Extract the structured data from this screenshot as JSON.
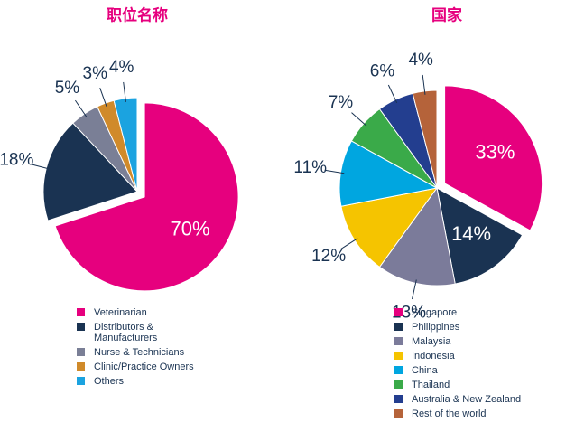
{
  "chart_data": [
    {
      "type": "pie",
      "title": "职位名称",
      "categories": [
        "Veterinarian",
        "Distributors & Manufacturers",
        "Nurse & Technicians",
        "Clinic/Practice Owners",
        "Others"
      ],
      "values": [
        70,
        18,
        5,
        3,
        4
      ],
      "value_labels": [
        "70%",
        "18%",
        "5%",
        "3%",
        "4%"
      ],
      "colors": [
        "#e6007e",
        "#1a3352",
        "#7a7f96",
        "#d08a2a",
        "#1ba3e0"
      ]
    },
    {
      "type": "pie",
      "title": "国家",
      "categories": [
        "Singapore",
        "Philippines",
        "Malaysia",
        "Indonesia",
        "China",
        "Thailand",
        "Australia & New Zealand",
        "Rest of the world"
      ],
      "values": [
        33,
        14,
        13,
        12,
        11,
        7,
        6,
        4
      ],
      "value_labels": [
        "33%",
        "14%",
        "13%",
        "12%",
        "11%",
        "7%",
        "6%",
        "4%"
      ],
      "colors": [
        "#e6007e",
        "#1a3352",
        "#7b7b9a",
        "#f5c400",
        "#00a6e0",
        "#3aaa49",
        "#233e8f",
        "#b5633a"
      ]
    }
  ]
}
